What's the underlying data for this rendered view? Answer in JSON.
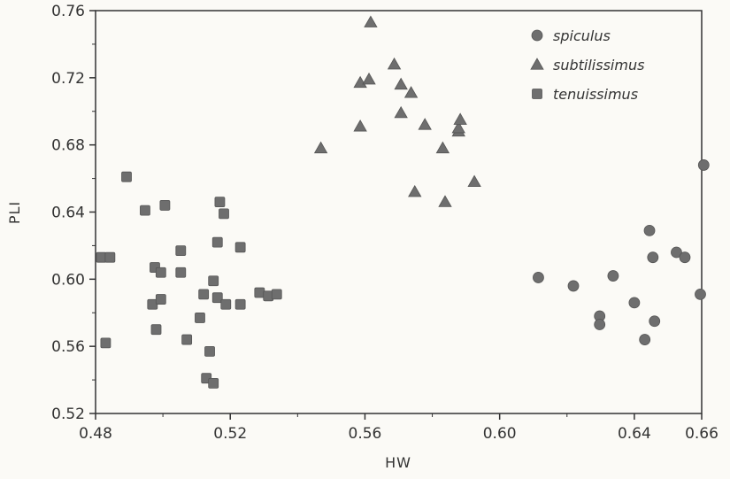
{
  "chart_data": {
    "type": "scatter",
    "title": "",
    "xlabel": "HW",
    "ylabel": "PLI",
    "xlim": [
      0.48,
      0.66
    ],
    "ylim": [
      0.52,
      0.76
    ],
    "xticks": [
      "0.48",
      "0.52",
      "0.56",
      "0.60",
      "0.64",
      "0.66"
    ],
    "xtick_values": [
      0.48,
      0.52,
      0.56,
      0.6,
      0.64,
      0.66
    ],
    "yticks": [
      "0.52",
      "0.56",
      "0.60",
      "0.64",
      "0.68",
      "0.72",
      "0.76"
    ],
    "ytick_values": [
      0.52,
      0.56,
      0.6,
      0.64,
      0.68,
      0.72,
      0.76
    ],
    "grid": false,
    "legend_position": "top-right",
    "series": [
      {
        "name": "spiculus",
        "marker": "circle",
        "color": "#6e6e6e",
        "points": [
          [
            0.6115,
            0.601
          ],
          [
            0.6219,
            0.596
          ],
          [
            0.6297,
            0.578
          ],
          [
            0.6297,
            0.573
          ],
          [
            0.6337,
            0.602
          ],
          [
            0.64,
            0.586
          ],
          [
            0.6431,
            0.564
          ],
          [
            0.6445,
            0.629
          ],
          [
            0.6455,
            0.613
          ],
          [
            0.646,
            0.575
          ],
          [
            0.6525,
            0.616
          ],
          [
            0.655,
            0.613
          ],
          [
            0.6596,
            0.591
          ],
          [
            0.6606,
            0.668
          ]
        ]
      },
      {
        "name": "subtilissimus",
        "marker": "triangle",
        "color": "#6e6e6e",
        "points": [
          [
            0.5469,
            0.678
          ],
          [
            0.5586,
            0.717
          ],
          [
            0.5586,
            0.691
          ],
          [
            0.5612,
            0.719
          ],
          [
            0.5617,
            0.753
          ],
          [
            0.5687,
            0.728
          ],
          [
            0.5707,
            0.716
          ],
          [
            0.5707,
            0.699
          ],
          [
            0.5737,
            0.711
          ],
          [
            0.5748,
            0.652
          ],
          [
            0.5778,
            0.692
          ],
          [
            0.5831,
            0.678
          ],
          [
            0.5838,
            0.646
          ],
          [
            0.5878,
            0.688
          ],
          [
            0.5878,
            0.69
          ],
          [
            0.5883,
            0.695
          ],
          [
            0.5925,
            0.658
          ]
        ]
      },
      {
        "name": "tenuissimus",
        "marker": "square",
        "color": "#6e6e6e",
        "points": [
          [
            0.4817,
            0.613
          ],
          [
            0.483,
            0.562
          ],
          [
            0.4843,
            0.613
          ],
          [
            0.4892,
            0.661
          ],
          [
            0.4947,
            0.641
          ],
          [
            0.4969,
            0.585
          ],
          [
            0.4976,
            0.607
          ],
          [
            0.498,
            0.57
          ],
          [
            0.4994,
            0.604
          ],
          [
            0.4994,
            0.588
          ],
          [
            0.5006,
            0.644
          ],
          [
            0.5053,
            0.617
          ],
          [
            0.5053,
            0.604
          ],
          [
            0.5071,
            0.564
          ],
          [
            0.511,
            0.577
          ],
          [
            0.5121,
            0.591
          ],
          [
            0.5129,
            0.541
          ],
          [
            0.5139,
            0.557
          ],
          [
            0.515,
            0.599
          ],
          [
            0.515,
            0.538
          ],
          [
            0.5162,
            0.589
          ],
          [
            0.5162,
            0.622
          ],
          [
            0.5169,
            0.646
          ],
          [
            0.5181,
            0.639
          ],
          [
            0.5187,
            0.585
          ],
          [
            0.523,
            0.619
          ],
          [
            0.523,
            0.585
          ],
          [
            0.5287,
            0.592
          ],
          [
            0.5313,
            0.59
          ],
          [
            0.5338,
            0.591
          ]
        ]
      }
    ]
  }
}
